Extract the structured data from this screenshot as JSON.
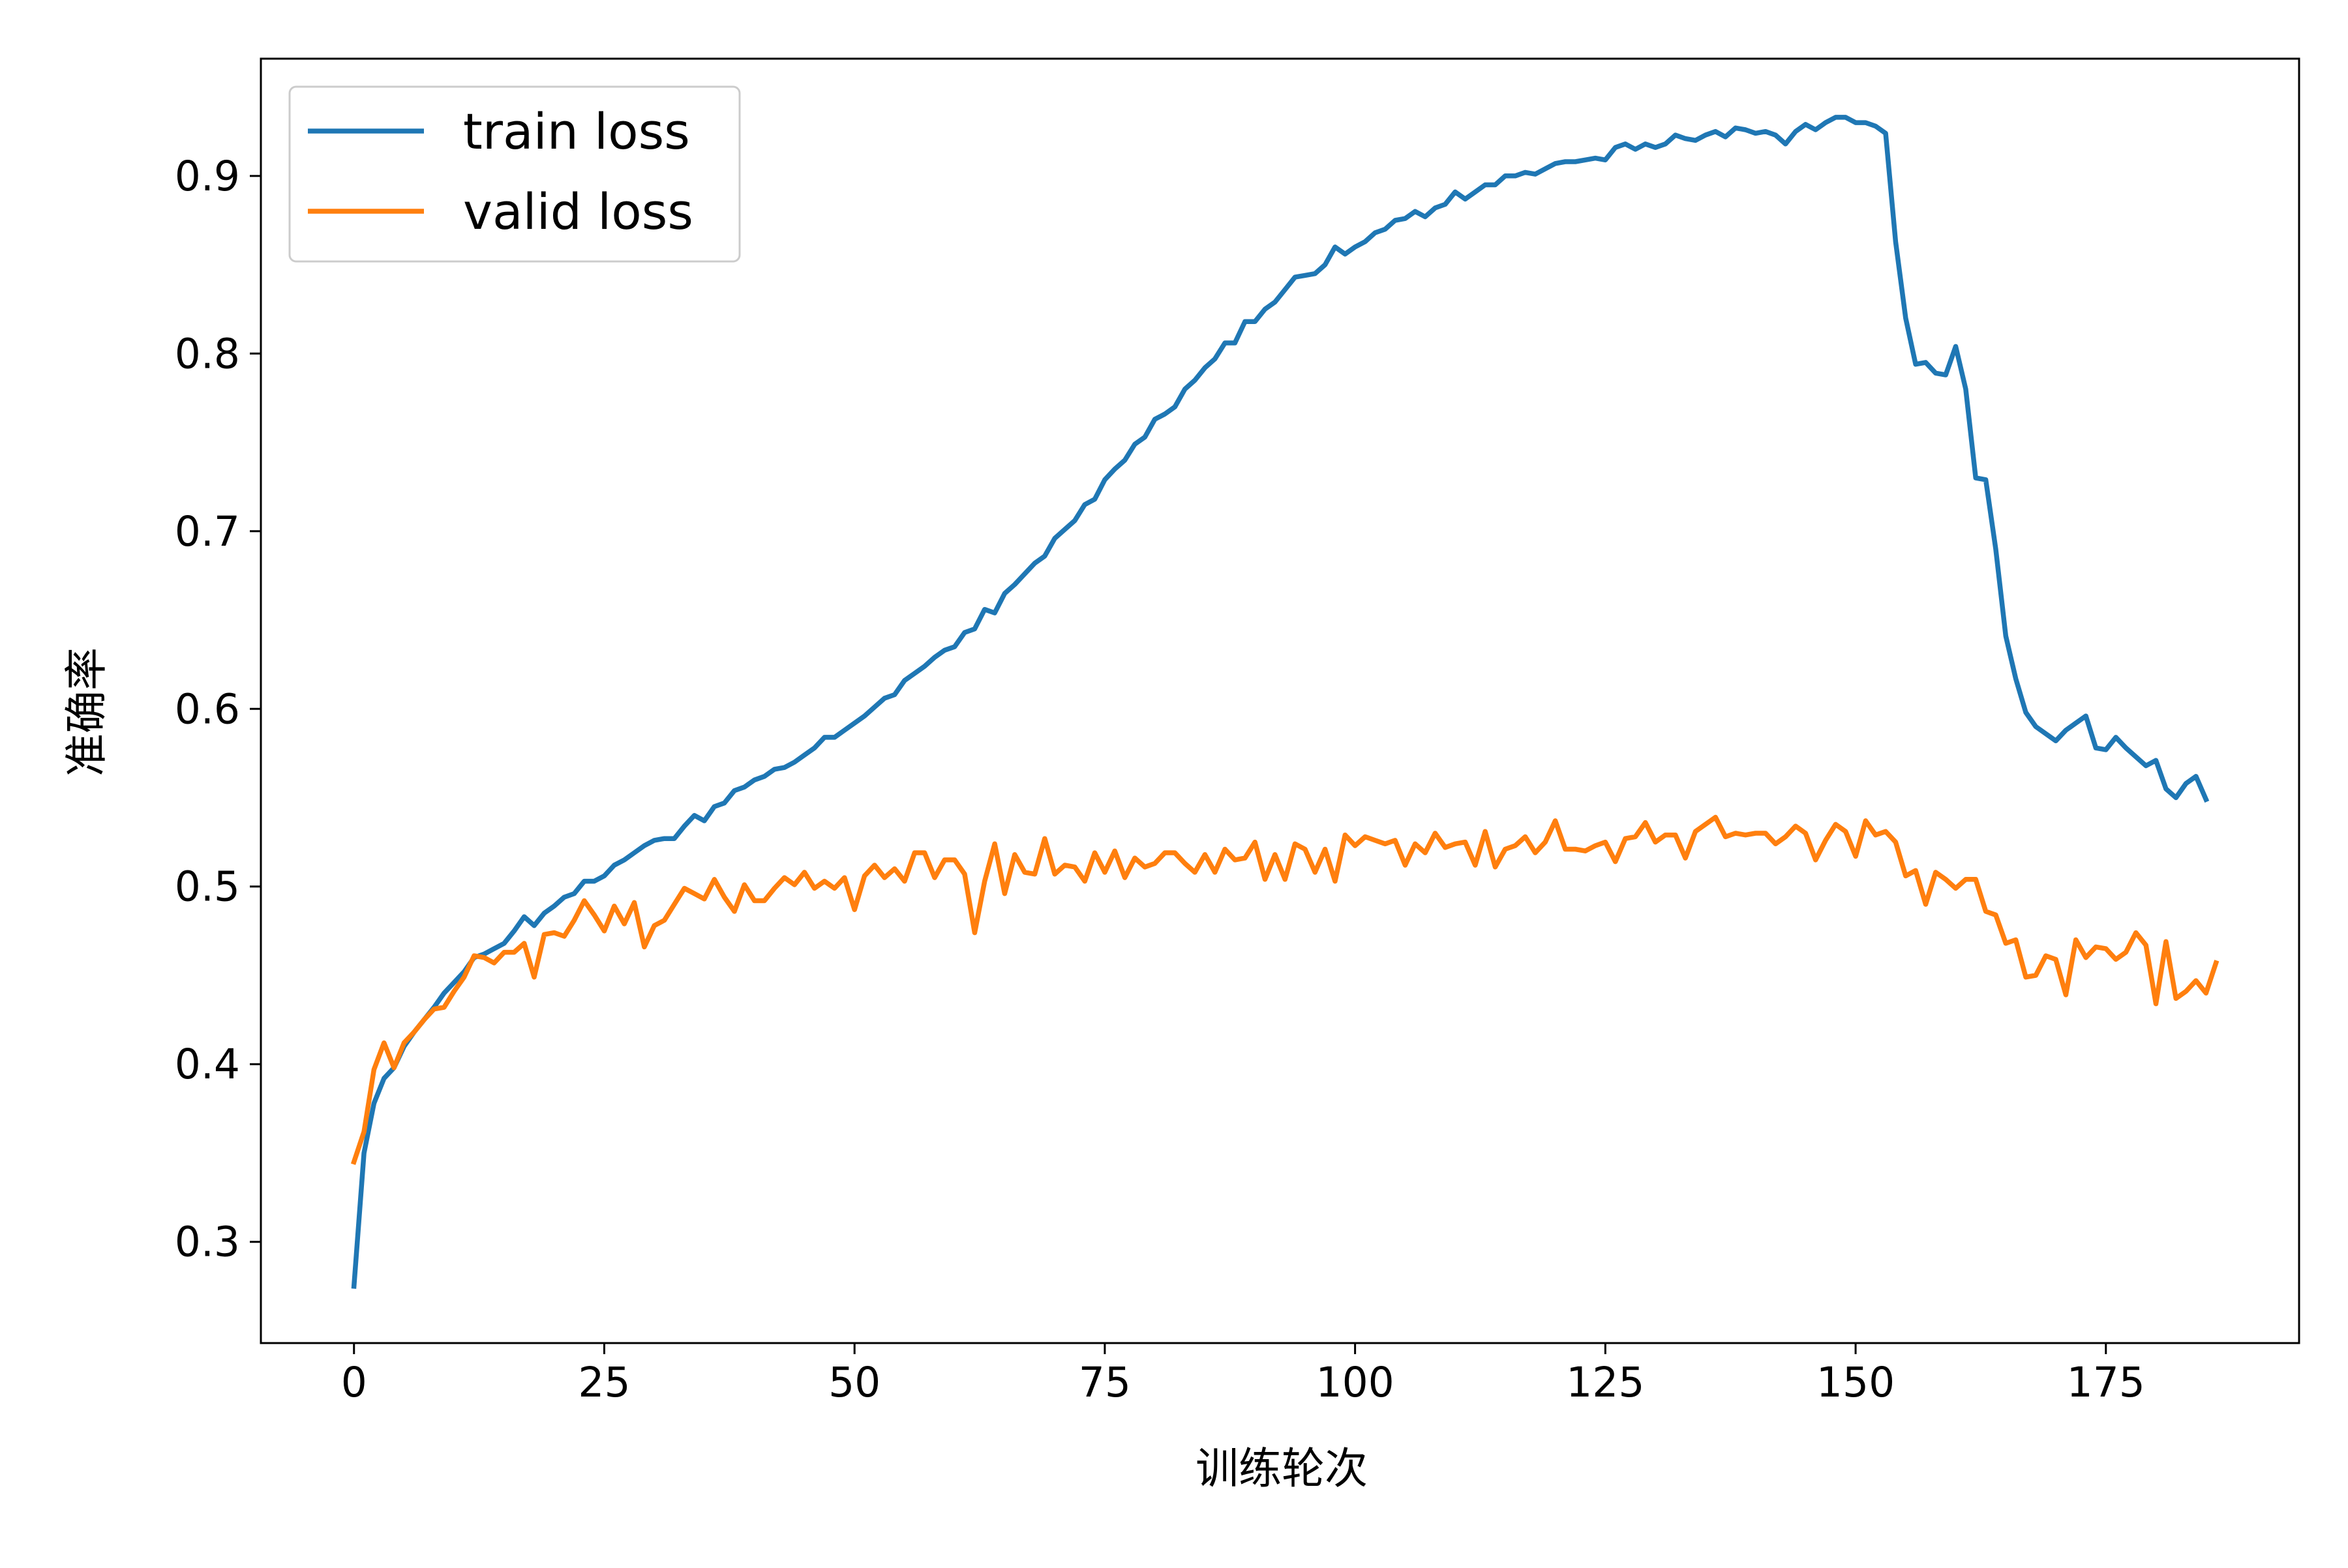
{
  "chart_data": {
    "type": "line",
    "title": "",
    "xlabel": "训练轮次",
    "ylabel": "准确率",
    "xlim": [
      -9.3,
      194.3
    ],
    "ylim": [
      0.243,
      0.966
    ],
    "xticks": [
      0,
      25,
      50,
      75,
      100,
      125,
      150,
      175
    ],
    "xtick_labels": [
      "0",
      "25",
      "50",
      "75",
      "100",
      "125",
      "150",
      "175"
    ],
    "yticks": [
      0.3,
      0.4,
      0.5,
      0.6,
      0.7,
      0.8,
      0.9
    ],
    "ytick_labels": [
      "0.3",
      "0.4",
      "0.5",
      "0.6",
      "0.7",
      "0.8",
      "0.9"
    ],
    "grid": false,
    "legend_position": "top-left",
    "series": [
      {
        "name": "train loss",
        "color": "#1f77b4",
        "x_start": 0,
        "values": [
          0.275,
          0.35,
          0.378,
          0.392,
          0.398,
          0.41,
          0.418,
          0.425,
          0.432,
          0.44,
          0.446,
          0.452,
          0.46,
          0.462,
          0.465,
          0.468,
          0.475,
          0.483,
          0.478,
          0.485,
          0.489,
          0.494,
          0.496,
          0.503,
          0.503,
          0.506,
          0.512,
          0.515,
          0.519,
          0.523,
          0.526,
          0.527,
          0.527,
          0.534,
          0.54,
          0.537,
          0.545,
          0.547,
          0.554,
          0.556,
          0.56,
          0.562,
          0.566,
          0.567,
          0.57,
          0.574,
          0.578,
          0.584,
          0.584,
          0.588,
          0.592,
          0.596,
          0.601,
          0.606,
          0.608,
          0.616,
          0.62,
          0.624,
          0.629,
          0.633,
          0.635,
          0.643,
          0.645,
          0.656,
          0.654,
          0.665,
          0.67,
          0.676,
          0.682,
          0.686,
          0.696,
          0.701,
          0.706,
          0.715,
          0.718,
          0.729,
          0.735,
          0.74,
          0.749,
          0.753,
          0.763,
          0.766,
          0.77,
          0.78,
          0.785,
          0.792,
          0.797,
          0.806,
          0.806,
          0.818,
          0.818,
          0.825,
          0.829,
          0.836,
          0.843,
          0.844,
          0.845,
          0.85,
          0.86,
          0.856,
          0.86,
          0.863,
          0.868,
          0.87,
          0.875,
          0.876,
          0.88,
          0.877,
          0.882,
          0.884,
          0.891,
          0.887,
          0.891,
          0.895,
          0.895,
          0.9,
          0.9,
          0.902,
          0.901,
          0.904,
          0.907,
          0.908,
          0.908,
          0.909,
          0.91,
          0.909,
          0.916,
          0.918,
          0.915,
          0.918,
          0.916,
          0.918,
          0.923,
          0.921,
          0.92,
          0.923,
          0.925,
          0.922,
          0.927,
          0.926,
          0.924,
          0.925,
          0.923,
          0.918,
          0.925,
          0.929,
          0.926,
          0.93,
          0.933,
          0.933,
          0.93,
          0.93,
          0.928,
          0.924,
          0.863,
          0.82,
          0.794,
          0.795,
          0.789,
          0.788,
          0.804,
          0.78,
          0.73,
          0.729,
          0.69,
          0.641,
          0.617,
          0.598,
          0.59,
          0.586,
          0.582,
          0.588,
          0.592,
          0.596,
          0.578,
          0.577,
          0.584,
          0.578,
          0.573,
          0.568,
          0.571,
          0.555,
          0.55,
          0.558,
          0.562,
          0.549
        ]
      },
      {
        "name": "valid loss",
        "color": "#ff7f0e",
        "x_start": 0,
        "values": [
          0.345,
          0.362,
          0.397,
          0.412,
          0.398,
          0.412,
          0.418,
          0.425,
          0.431,
          0.432,
          0.441,
          0.449,
          0.461,
          0.46,
          0.457,
          0.463,
          0.463,
          0.468,
          0.449,
          0.473,
          0.474,
          0.472,
          0.481,
          0.492,
          0.484,
          0.475,
          0.489,
          0.479,
          0.491,
          0.466,
          0.478,
          0.481,
          0.49,
          0.499,
          0.496,
          0.493,
          0.504,
          0.494,
          0.486,
          0.501,
          0.492,
          0.492,
          0.499,
          0.505,
          0.501,
          0.508,
          0.499,
          0.503,
          0.499,
          0.505,
          0.487,
          0.506,
          0.512,
          0.505,
          0.51,
          0.503,
          0.519,
          0.519,
          0.505,
          0.515,
          0.515,
          0.507,
          0.474,
          0.503,
          0.524,
          0.496,
          0.518,
          0.508,
          0.507,
          0.527,
          0.507,
          0.512,
          0.511,
          0.503,
          0.519,
          0.508,
          0.52,
          0.505,
          0.516,
          0.511,
          0.513,
          0.519,
          0.519,
          0.513,
          0.508,
          0.518,
          0.508,
          0.521,
          0.515,
          0.516,
          0.525,
          0.504,
          0.518,
          0.504,
          0.524,
          0.521,
          0.508,
          0.521,
          0.503,
          0.529,
          0.523,
          0.528,
          0.526,
          0.524,
          0.526,
          0.512,
          0.524,
          0.519,
          0.53,
          0.522,
          0.524,
          0.525,
          0.512,
          0.531,
          0.511,
          0.521,
          0.523,
          0.528,
          0.519,
          0.525,
          0.537,
          0.521,
          0.521,
          0.52,
          0.523,
          0.525,
          0.514,
          0.527,
          0.528,
          0.536,
          0.525,
          0.529,
          0.529,
          0.516,
          0.531,
          0.535,
          0.539,
          0.528,
          0.53,
          0.529,
          0.53,
          0.53,
          0.524,
          0.528,
          0.534,
          0.53,
          0.515,
          0.526,
          0.535,
          0.531,
          0.517,
          0.537,
          0.529,
          0.531,
          0.525,
          0.506,
          0.509,
          0.49,
          0.508,
          0.504,
          0.499,
          0.504,
          0.504,
          0.486,
          0.484,
          0.468,
          0.47,
          0.449,
          0.45,
          0.461,
          0.459,
          0.439,
          0.47,
          0.46,
          0.466,
          0.465,
          0.459,
          0.463,
          0.474,
          0.467,
          0.434,
          0.469,
          0.437,
          0.441,
          0.447,
          0.44,
          0.457
        ]
      }
    ]
  }
}
